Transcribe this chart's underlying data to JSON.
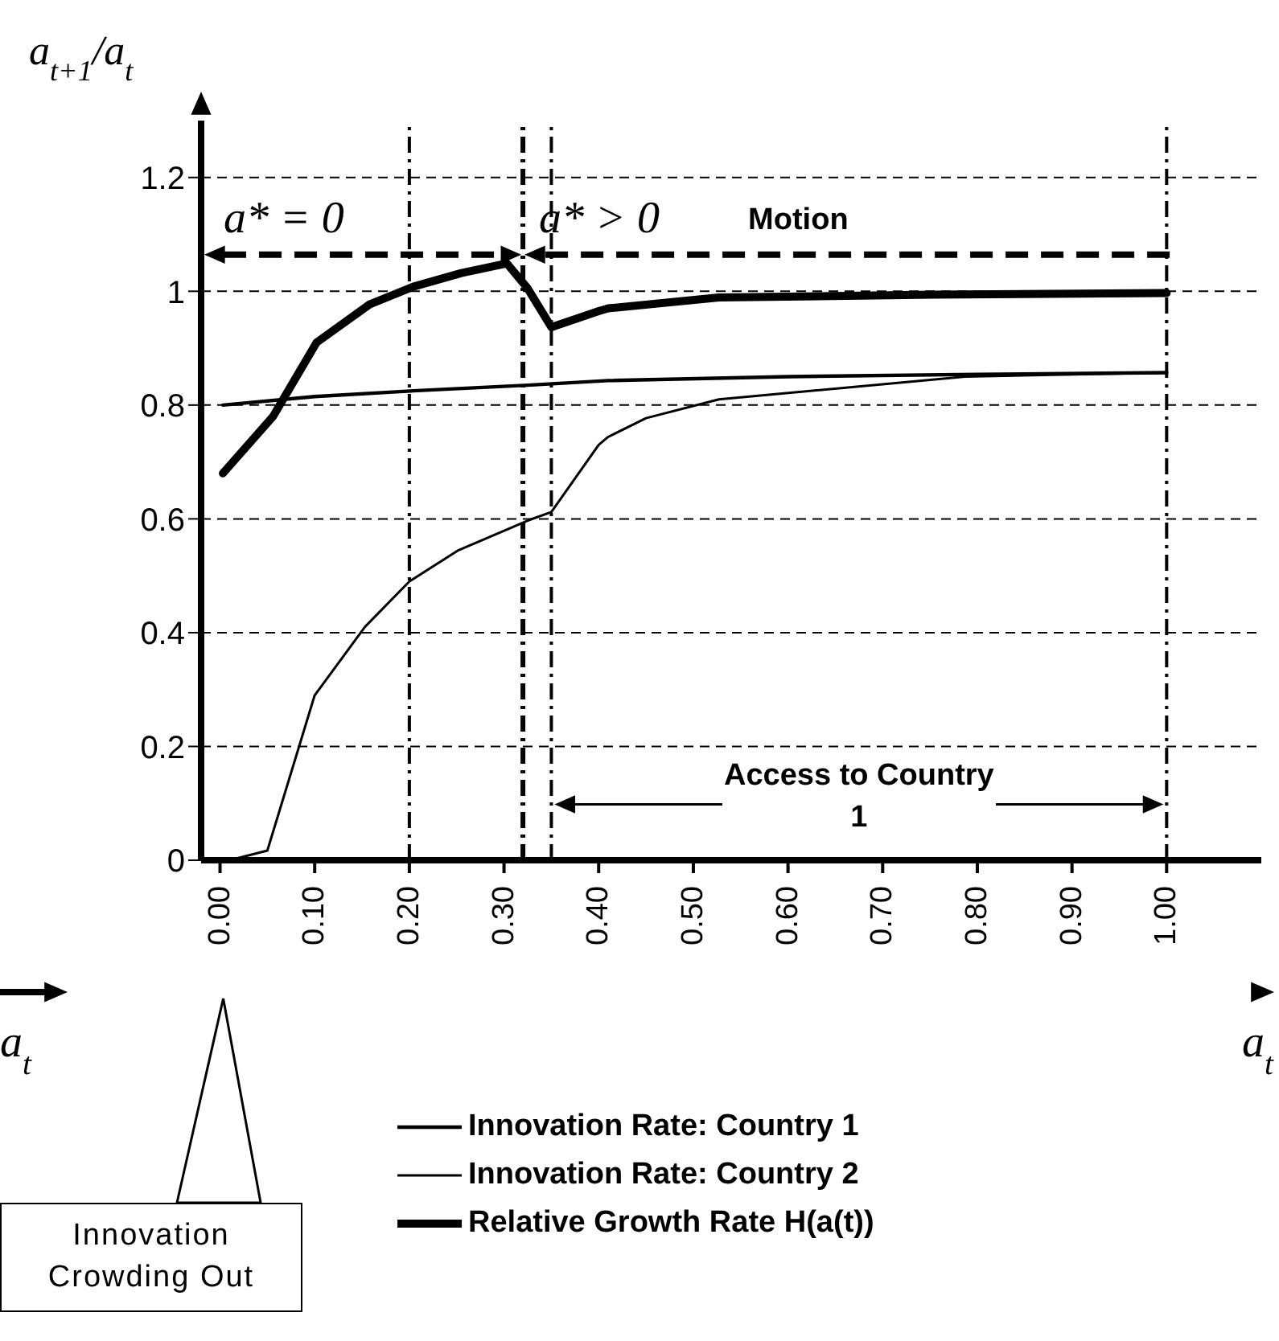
{
  "chart_data": {
    "type": "line",
    "ylabel": "a$_{t+1}$/a$_{t}$",
    "xlabel": "a$_{t}$",
    "xlim": [
      -0.02,
      1.1
    ],
    "xticks": [
      {
        "value": 0,
        "label": "0.00"
      },
      {
        "value": 0.1,
        "label": "0.10"
      },
      {
        "value": 0.2,
        "label": "0.20"
      },
      {
        "value": 0.3,
        "label": "0.30"
      },
      {
        "value": 0.4,
        "label": "0.40"
      },
      {
        "value": 0.5,
        "label": "0.50"
      },
      {
        "value": 0.6,
        "label": "0.60"
      },
      {
        "value": 0.7,
        "label": "0.70"
      },
      {
        "value": 0.8,
        "label": "0.80"
      },
      {
        "value": 0.9,
        "label": "0.90"
      },
      {
        "value": 1,
        "label": "1.00"
      }
    ],
    "ylim": [
      0,
      1.3
    ],
    "yticks": [
      0,
      0.2,
      0.4,
      0.6,
      0.8,
      1,
      1.2
    ],
    "grid": "y",
    "legend": "bottom",
    "marker": "none",
    "line_style": "solid",
    "series": [
      {
        "name": "Innovation Rate: Country 1",
        "color": "#000000",
        "x": [
          0.003,
          0.1,
          0.204,
          0.325,
          0.41,
          0.6,
          0.8,
          1.0
        ],
        "values": [
          0.8,
          0.815,
          0.825,
          0.835,
          0.843,
          0.85,
          0.854,
          0.857
        ]
      },
      {
        "name": "Innovation Rate: Country 2",
        "color": "#000000",
        "x": [
          0,
          0.01,
          0.05,
          0.1,
          0.153,
          0.2,
          0.252,
          0.325,
          0.35,
          0.4,
          0.41,
          0.45,
          0.527,
          0.787,
          1.0
        ],
        "values": [
          0,
          0,
          0.017,
          0.29,
          0.41,
          0.49,
          0.545,
          0.597,
          0.612,
          0.73,
          0.744,
          0.777,
          0.81,
          0.85,
          0.857
        ]
      },
      {
        "name": "Relative Growth Rate H(a(t))",
        "color": "#000000",
        "x": [
          0.003,
          0.056,
          0.102,
          0.158,
          0.204,
          0.255,
          0.303,
          0.325,
          0.35,
          0.4,
          0.41,
          0.527,
          0.753,
          1.0
        ],
        "values": [
          0.68,
          0.78,
          0.91,
          0.977,
          1.008,
          1.032,
          1.049,
          1.005,
          0.937,
          0.965,
          0.97,
          0.989,
          0.994,
          0.997
        ]
      }
    ],
    "ref_lines": [
      {
        "axis": "x",
        "value": 0.2,
        "color": "#000000",
        "line_style": "dashed"
      },
      {
        "axis": "x",
        "value": 0.32,
        "color": "#000000",
        "line_style": "dashed"
      },
      {
        "axis": "x",
        "value": 0.35,
        "color": "#000000",
        "line_style": "dashed"
      },
      {
        "axis": "x",
        "value": 1.0,
        "color": "#000000",
        "line_style": "dashed"
      }
    ],
    "annotations": [
      "a* = 0",
      "a* > 0",
      "Motion",
      "Access to Country 1",
      "Innovation Crowding Out",
      "a$_{t}$"
    ]
  }
}
